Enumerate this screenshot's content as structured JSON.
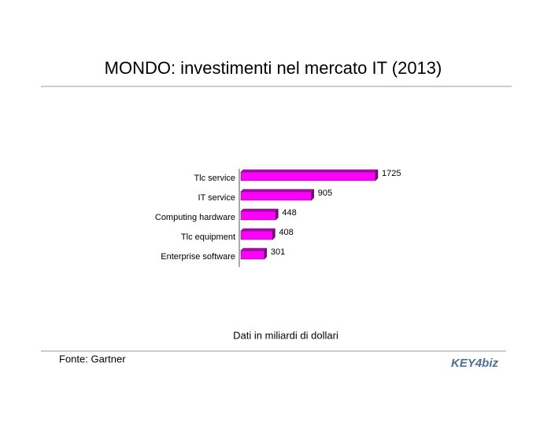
{
  "chart_data": {
    "type": "bar",
    "orientation": "horizontal",
    "title": "MONDO: investimenti nel mercato IT (2013)",
    "categories": [
      "Tlc service",
      "IT service",
      "Computing hardware",
      "Tlc equipment",
      "Enterprise software"
    ],
    "values": [
      1725,
      905,
      448,
      408,
      301
    ],
    "color": "#ff00ff",
    "note": "Dati in miliardi di dollari",
    "source": "Fonte: Gartner",
    "logo": "KEY4biz"
  }
}
